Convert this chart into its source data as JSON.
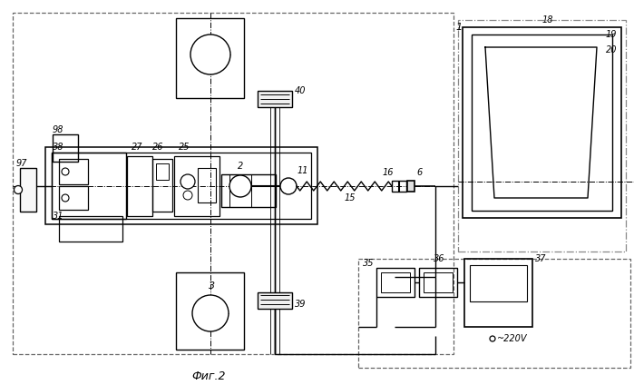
{
  "title": "Фиг.2",
  "bg_color": "#ffffff",
  "fig_width": 6.99,
  "fig_height": 4.24,
  "dpi": 100
}
